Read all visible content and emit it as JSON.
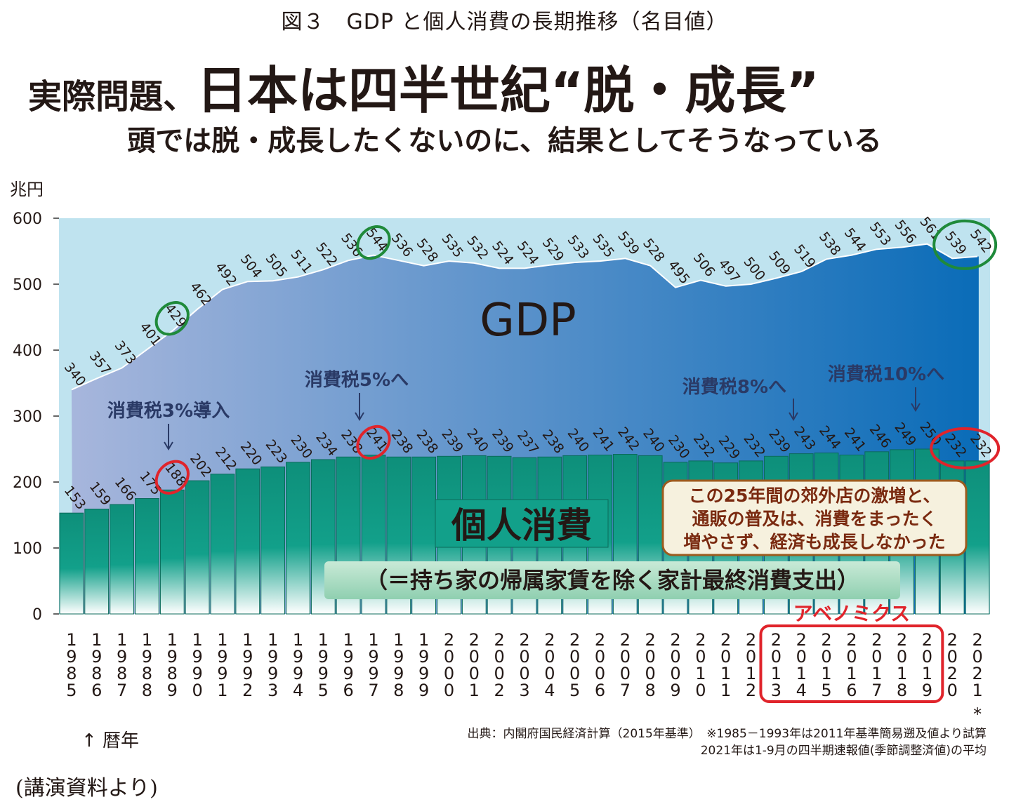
{
  "header": {
    "figure_title": "図３　GDP と個人消費の長期推移（名目値）",
    "headline_small": "実際問題、",
    "headline_big": "日本は四半世紀“脱・成長”",
    "subheadline": "頭では脱・成長したくないのに、結果としてそうなっている"
  },
  "footer": {
    "year_caption": "↑ 暦年",
    "source_note": "(講演資料より)",
    "source_line1": "出典：内閣府国民経済計算（2015年基準）　※1985－1993年は2011年基準簡易遡及値より試算",
    "source_line2": "2021年は1-9月の四半期速報値(季節調整済値)の平均"
  },
  "colors": {
    "bar": "#12a08a",
    "bar_top": "#0e8f7a",
    "plot_bg": "#bfe3ef",
    "gdp_area_left": "#a7b6dc",
    "gdp_area_right": "#0a6cb8",
    "ring_green": "#1f8a3a",
    "ring_red": "#e0242b",
    "text_dark": "#231815",
    "label_navy": "#2a3a66",
    "abenomics_red": "#e0242b",
    "callout_text": "#7a2a10"
  },
  "chart_data": {
    "type": "bar",
    "y_unit": "兆円",
    "ylim": [
      0,
      600
    ],
    "yticks": [
      "0",
      "100",
      "200",
      "300",
      "400",
      "500",
      "600"
    ],
    "x_tick_labels": [
      "1985",
      "1986",
      "1987",
      "1988",
      "1989",
      "1990",
      "1991",
      "1992",
      "1993",
      "1994",
      "1995",
      "1996",
      "1997",
      "1998",
      "1999",
      "2000",
      "2001",
      "2002",
      "2003",
      "2004",
      "2005",
      "2006",
      "2007",
      "2008",
      "2009",
      "2010",
      "2011",
      "2012",
      "2013",
      "2014",
      "2015",
      "2016",
      "2017",
      "2018",
      "2019",
      "2020",
      "2021"
    ],
    "x_footnote_mark": "*",
    "series": [
      {
        "name": "GDP",
        "type": "area",
        "values": [
          340,
          357,
          373,
          401,
          429,
          462,
          492,
          504,
          505,
          511,
          522,
          536,
          544,
          536,
          528,
          535,
          532,
          524,
          524,
          529,
          533,
          535,
          539,
          528,
          495,
          506,
          497,
          500,
          509,
          519,
          538,
          544,
          553,
          556,
          561,
          539,
          542
        ]
      },
      {
        "name": "個人消費",
        "type": "bar",
        "values": [
          153,
          159,
          166,
          175,
          188,
          202,
          212,
          220,
          223,
          230,
          234,
          238,
          241,
          238,
          238,
          239,
          240,
          239,
          237,
          238,
          240,
          241,
          242,
          240,
          230,
          232,
          229,
          232,
          239,
          243,
          244,
          241,
          246,
          249,
          250,
          232,
          232
        ]
      }
    ],
    "series_sublabel": "（＝持ち家の帰属家賃を除く家計最終消費支出）",
    "gdp_highlight_years": [
      "1989",
      "1997",
      "2020",
      "2021"
    ],
    "consumption_highlight_years": [
      "1989",
      "1997",
      "2020",
      "2021"
    ],
    "annotations": [
      {
        "text": "消費税3%導入",
        "year": "1989"
      },
      {
        "text": "消費税5%へ",
        "year": "1997"
      },
      {
        "text": "消費税8%へ",
        "year": "2014"
      },
      {
        "text": "消費税10%へ",
        "year": "2019"
      }
    ],
    "abenomics": {
      "label": "アベノミクス",
      "years": [
        "2013",
        "2019"
      ]
    },
    "callout": [
      "この25年間の郊外店の激増と、",
      "通販の普及は、消費をまったく",
      "増やさず、経済も成長しなかった"
    ]
  }
}
